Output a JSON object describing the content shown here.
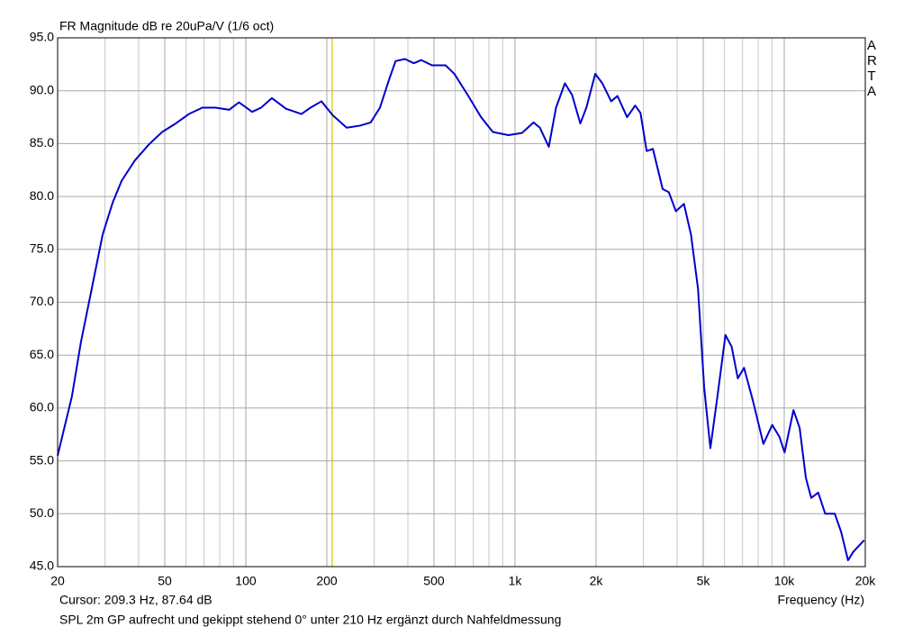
{
  "chart_data": {
    "type": "line",
    "title": "FR Magnitude dB re 20uPa/V (1/6 oct)",
    "xlabel": "Frequency (Hz)",
    "footnote": "SPL 2m GP aufrecht und gekippt stehend 0° unter 210 Hz ergänzt durch Nahfeldmessung",
    "watermark": "ARTA",
    "cursor": {
      "label": "Cursor: 209.3 Hz, 87.64 dB",
      "x": 209.3,
      "color": "#d4c400"
    },
    "xscale": "log",
    "xlim": [
      20,
      20000
    ],
    "ylim": [
      45,
      95
    ],
    "xticks": [
      20,
      50,
      100,
      200,
      500,
      {
        "value": 1000,
        "label": "1k"
      },
      {
        "value": 2000,
        "label": "2k"
      },
      {
        "value": 5000,
        "label": "5k"
      },
      {
        "value": 10000,
        "label": "10k"
      },
      {
        "value": 20000,
        "label": "20k"
      }
    ],
    "x_minor_ticks": [
      30,
      40,
      60,
      70,
      80,
      90,
      300,
      400,
      600,
      700,
      800,
      900,
      3000,
      4000,
      6000,
      7000,
      8000,
      9000
    ],
    "yticks": [
      {
        "value": 45,
        "label": "45.0"
      },
      {
        "value": 50,
        "label": "50.0"
      },
      {
        "value": 55,
        "label": "55.0"
      },
      {
        "value": 60,
        "label": "60.0"
      },
      {
        "value": 65,
        "label": "65.0"
      },
      {
        "value": 70,
        "label": "70.0"
      },
      {
        "value": 75,
        "label": "75.0"
      },
      {
        "value": 80,
        "label": "80.0"
      },
      {
        "value": 85,
        "label": "85.0"
      },
      {
        "value": 90,
        "label": "90.0"
      },
      {
        "value": 95,
        "label": "95.0"
      }
    ],
    "grid": true,
    "x": [
      20,
      22.6,
      24.4,
      26.4,
      29.4,
      32,
      34.6,
      38.7,
      43.6,
      48.9,
      54.9,
      61.5,
      69,
      77.3,
      86.8,
      94.3,
      105.6,
      114,
      125,
      141,
      161,
      174,
      191,
      210,
      237,
      266,
      291,
      315,
      339,
      360,
      390,
      421,
      448,
      492,
      552,
      595,
      667,
      748,
      827,
      945,
      1061,
      1172,
      1237,
      1335,
      1420,
      1532,
      1629,
      1748,
      1841,
      1987,
      2110,
      2276,
      2402,
      2608,
      2794,
      2924,
      3083,
      3252,
      3535,
      3727,
      3960,
      4241,
      4504,
      4783,
      5043,
      5317,
      5648,
      6048,
      6378,
      6725,
      7091,
      7648,
      8368,
      9022,
      9587,
      10030,
      10822,
      11412,
      12031,
      12598,
      13374,
      14198,
      15410,
      16260,
      17261,
      18050,
      19800
    ],
    "series": [
      {
        "color": "#0000cc",
        "values": [
          55.5,
          61.1,
          66.2,
          70.5,
          76.4,
          79.4,
          81.5,
          83.4,
          84.9,
          86.1,
          86.9,
          87.8,
          88.4,
          88.4,
          88.2,
          88.9,
          88.0,
          88.4,
          89.3,
          88.3,
          87.8,
          88.4,
          89.0,
          87.7,
          86.5,
          86.7,
          87.0,
          88.4,
          90.9,
          92.8,
          93.0,
          92.6,
          92.9,
          92.4,
          92.4,
          91.6,
          89.6,
          87.5,
          86.1,
          85.8,
          86.0,
          87.0,
          86.5,
          84.7,
          88.4,
          90.7,
          89.6,
          86.9,
          88.4,
          91.6,
          90.7,
          89.0,
          89.5,
          87.5,
          88.6,
          87.9,
          84.3,
          84.5,
          80.7,
          80.4,
          78.6,
          79.3,
          76.4,
          71.3,
          61.9,
          56.2,
          61.1,
          66.9,
          65.8,
          62.8,
          63.8,
          60.7,
          56.6,
          58.4,
          57.3,
          55.8,
          59.8,
          58.1,
          53.4,
          51.5,
          52.0,
          50.0,
          50.0,
          48.3,
          45.6,
          46.4,
          47.5
        ]
      }
    ]
  }
}
